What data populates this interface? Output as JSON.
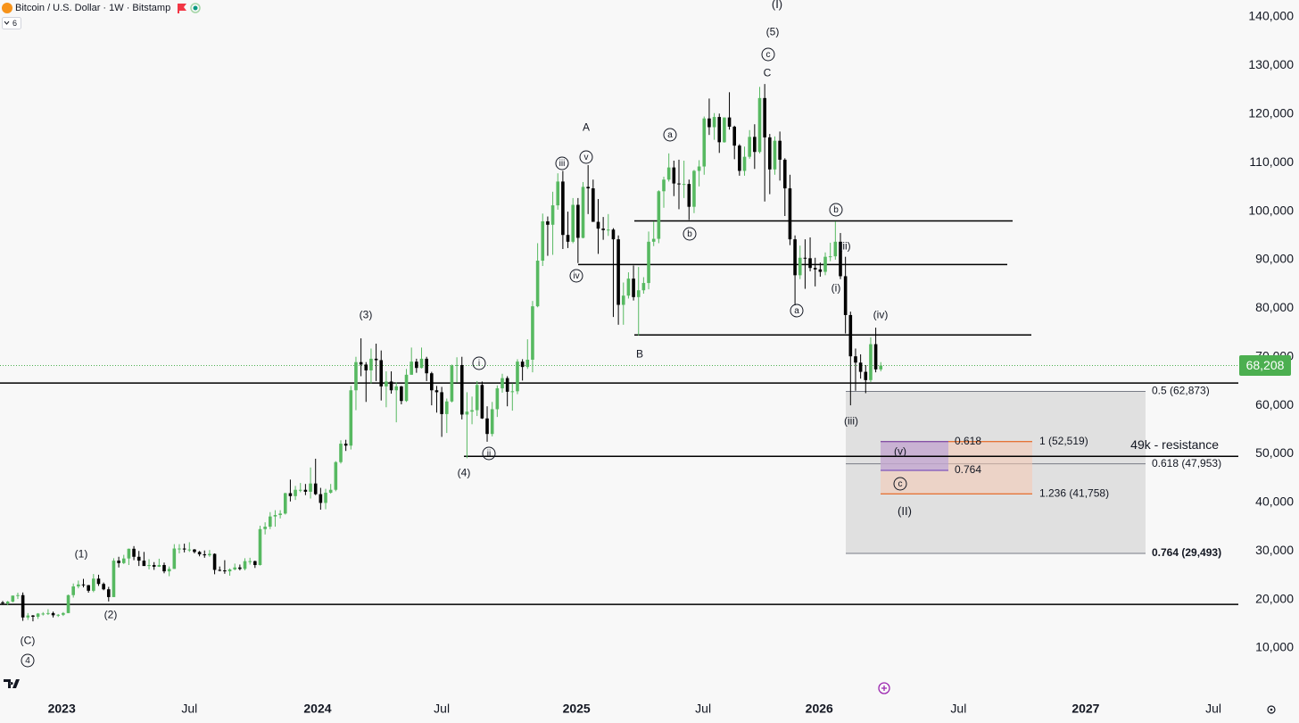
{
  "chart_data": {
    "type": "candlestick",
    "title": "Bitcoin / U.S. Dollar · 1W · Bitstamp",
    "indicator_count": 6,
    "up_color": "#57b961",
    "down_color": "#000000",
    "grid": false,
    "xlim": [
      -0.53,
      245.2
    ],
    "xticks": [
      {
        "value": 11.7,
        "label": "2023"
      },
      {
        "value": 37,
        "label": "Jul"
      },
      {
        "value": 62.4,
        "label": "2024"
      },
      {
        "value": 87,
        "label": "Jul"
      },
      {
        "value": 113.7,
        "label": "2025"
      },
      {
        "value": 138.8,
        "label": "Jul"
      },
      {
        "value": 161.8,
        "label": "2026"
      },
      {
        "value": 189.4,
        "label": "Jul"
      },
      {
        "value": 214.6,
        "label": "2027"
      },
      {
        "value": 239.9,
        "label": "Jul"
      }
    ],
    "ylim": [
      0,
      143500
    ],
    "yticks": [
      {
        "value": 10000,
        "label": "10,000"
      },
      {
        "value": 20000,
        "label": "20,000"
      },
      {
        "value": 30000,
        "label": "30,000"
      },
      {
        "value": 40000,
        "label": "40,000"
      },
      {
        "value": 50000,
        "label": "50,000"
      },
      {
        "value": 60000,
        "label": "60,000"
      },
      {
        "value": 70000,
        "label": "70,000"
      },
      {
        "value": 80000,
        "label": "80,000"
      },
      {
        "value": 90000,
        "label": "90,000"
      },
      {
        "value": 100000,
        "label": "100,000"
      },
      {
        "value": 110000,
        "label": "110,000"
      },
      {
        "value": 120000,
        "label": "120,000"
      },
      {
        "value": 130000,
        "label": "130,000"
      },
      {
        "value": 140000,
        "label": "140,000"
      }
    ],
    "candles": [
      [
        19400,
        19700,
        18900,
        19200
      ],
      [
        19200,
        19700,
        18800,
        19570
      ],
      [
        19570,
        20800,
        19400,
        20800
      ],
      [
        20800,
        21400,
        20100,
        20900
      ],
      [
        20900,
        21450,
        15600,
        16300
      ],
      [
        16300,
        17200,
        15800,
        16700
      ],
      [
        16700,
        16800,
        15500,
        16450
      ],
      [
        16450,
        17200,
        16000,
        17100
      ],
      [
        17100,
        17400,
        16700,
        17100
      ],
      [
        17100,
        18000,
        16800,
        17200
      ],
      [
        17200,
        17500,
        16300,
        16750
      ],
      [
        16750,
        17000,
        16400,
        16850
      ],
      [
        16850,
        17400,
        16600,
        17200
      ],
      [
        17200,
        21000,
        17200,
        20900
      ],
      [
        20900,
        23300,
        20400,
        22700
      ],
      [
        22700,
        23900,
        22300,
        23100
      ],
      [
        23100,
        24250,
        22500,
        22950
      ],
      [
        22950,
        23000,
        21400,
        21800
      ],
      [
        21800,
        25250,
        21500,
        24300
      ],
      [
        24300,
        25100,
        22800,
        23200
      ],
      [
        23200,
        23500,
        21900,
        22100
      ],
      [
        22100,
        22600,
        19600,
        20500
      ],
      [
        20500,
        28500,
        20500,
        28000
      ],
      [
        28000,
        28800,
        26600,
        27500
      ],
      [
        27500,
        29200,
        27300,
        28450
      ],
      [
        28450,
        30500,
        27100,
        30450
      ],
      [
        30450,
        31000,
        28100,
        28800
      ],
      [
        28800,
        30000,
        26900,
        28000
      ],
      [
        28000,
        29800,
        27000,
        26900
      ],
      [
        26900,
        28300,
        26200,
        27100
      ],
      [
        27100,
        27700,
        26100,
        26750
      ],
      [
        26750,
        28400,
        26700,
        27100
      ],
      [
        27100,
        27600,
        25400,
        25800
      ],
      [
        25800,
        26800,
        24800,
        26300
      ],
      [
        26300,
        31400,
        26300,
        30500
      ],
      [
        30500,
        31400,
        29500,
        30500
      ],
      [
        30500,
        31500,
        29700,
        30300
      ],
      [
        30300,
        31800,
        29800,
        30300
      ],
      [
        30300,
        30400,
        29500,
        29800
      ],
      [
        29800,
        30000,
        28900,
        29300
      ],
      [
        29300,
        30100,
        28600,
        29100
      ],
      [
        29100,
        30200,
        28800,
        29400
      ],
      [
        29400,
        29500,
        25200,
        26100
      ],
      [
        26100,
        26800,
        25800,
        26000
      ],
      [
        26000,
        28100,
        25300,
        25800
      ],
      [
        25800,
        26400,
        24900,
        26200
      ],
      [
        26200,
        27400,
        26000,
        26600
      ],
      [
        26600,
        27200,
        26000,
        26300
      ],
      [
        26300,
        28500,
        26000,
        27900
      ],
      [
        27900,
        28600,
        27200,
        27900
      ],
      [
        27900,
        28000,
        26500,
        27100
      ],
      [
        27100,
        35200,
        27000,
        34500
      ],
      [
        34500,
        35900,
        33400,
        35000
      ],
      [
        35000,
        38000,
        34500,
        37100
      ],
      [
        37100,
        38400,
        35000,
        37400
      ],
      [
        37400,
        38400,
        36700,
        37700
      ],
      [
        37700,
        42000,
        37500,
        41900
      ],
      [
        41900,
        44700,
        40200,
        41300
      ],
      [
        41300,
        43400,
        40500,
        42600
      ],
      [
        42600,
        44000,
        42100,
        42600
      ],
      [
        42600,
        43800,
        41500,
        42200
      ],
      [
        42200,
        47200,
        40800,
        43900
      ],
      [
        43900,
        49000,
        41500,
        41700
      ],
      [
        41700,
        43000,
        38500,
        39900
      ],
      [
        39900,
        42800,
        38600,
        42000
      ],
      [
        42000,
        43800,
        41800,
        42600
      ],
      [
        42600,
        48500,
        42300,
        48300
      ],
      [
        48300,
        52800,
        48000,
        52100
      ],
      [
        52100,
        52900,
        50600,
        51700
      ],
      [
        51700,
        64000,
        50900,
        63100
      ],
      [
        63100,
        70000,
        59000,
        68900
      ],
      [
        68900,
        73800,
        66000,
        68400
      ],
      [
        68400,
        68900,
        60700,
        67200
      ],
      [
        67200,
        71700,
        64500,
        69600
      ],
      [
        69600,
        72700,
        65000,
        69300
      ],
      [
        69300,
        71300,
        61000,
        63900
      ],
      [
        63900,
        67000,
        59600,
        64900
      ],
      [
        64900,
        67000,
        62400,
        63100
      ],
      [
        63100,
        64700,
        56500,
        63900
      ],
      [
        63900,
        64000,
        60200,
        60900
      ],
      [
        60900,
        67500,
        60700,
        66300
      ],
      [
        66300,
        71900,
        66300,
        69000
      ],
      [
        69000,
        69600,
        66700,
        67700
      ],
      [
        67700,
        71900,
        67600,
        69600
      ],
      [
        69600,
        70000,
        65000,
        66600
      ],
      [
        66600,
        66900,
        60000,
        63100
      ],
      [
        63100,
        64000,
        58500,
        62700
      ],
      [
        62700,
        63800,
        53500,
        58200
      ],
      [
        58200,
        61400,
        54300,
        60800
      ],
      [
        60800,
        68400,
        60600,
        68200
      ],
      [
        68200,
        69900,
        64700,
        68300
      ],
      [
        68300,
        70000,
        57100,
        58100
      ],
      [
        58100,
        62700,
        49100,
        58700
      ],
      [
        58700,
        61800,
        56100,
        59000
      ],
      [
        59000,
        65000,
        57800,
        64200
      ],
      [
        64200,
        64900,
        57200,
        57300
      ],
      [
        57300,
        59800,
        52500,
        54100
      ],
      [
        54100,
        60700,
        53600,
        59200
      ],
      [
        59200,
        64100,
        57600,
        63500
      ],
      [
        63500,
        66500,
        62600,
        65600
      ],
      [
        65600,
        66000,
        59800,
        62800
      ],
      [
        62800,
        64500,
        58900,
        62900
      ],
      [
        62900,
        69500,
        62300,
        69000
      ],
      [
        69000,
        69500,
        65100,
        67900
      ],
      [
        67900,
        73600,
        67500,
        69400
      ],
      [
        69400,
        81500,
        66800,
        80400
      ],
      [
        80400,
        93400,
        80200,
        89800
      ],
      [
        89800,
        99500,
        88700,
        97900
      ],
      [
        97900,
        98900,
        90800,
        97200
      ],
      [
        97200,
        104000,
        91000,
        101200
      ],
      [
        101200,
        107800,
        100300,
        106100
      ],
      [
        106100,
        108300,
        92200,
        95100
      ],
      [
        95100,
        99900,
        92400,
        93700
      ],
      [
        93700,
        102700,
        93400,
        101300
      ],
      [
        101300,
        102700,
        89300,
        94500
      ],
      [
        94500,
        106000,
        94400,
        105000
      ],
      [
        105000,
        109500,
        99400,
        104700
      ],
      [
        104700,
        106500,
        97800,
        97800
      ],
      [
        97800,
        102500,
        91200,
        96400
      ],
      [
        96400,
        98800,
        94100,
        96100
      ],
      [
        96100,
        99400,
        94900,
        96200
      ],
      [
        96200,
        96500,
        78200,
        94200
      ],
      [
        94200,
        95000,
        76600,
        80700
      ],
      [
        80700,
        85300,
        76600,
        82600
      ],
      [
        82600,
        87400,
        82000,
        86100
      ],
      [
        86100,
        88800,
        81600,
        82300
      ],
      [
        82300,
        88500,
        74400,
        83700
      ],
      [
        83700,
        86400,
        83000,
        85200
      ],
      [
        85200,
        95800,
        83900,
        93700
      ],
      [
        93700,
        97900,
        92800,
        94300
      ],
      [
        94300,
        104300,
        93400,
        104100
      ],
      [
        104100,
        107100,
        100700,
        106500
      ],
      [
        106500,
        111900,
        106100,
        109000
      ],
      [
        109000,
        110400,
        103100,
        105700
      ],
      [
        105700,
        110600,
        100400,
        105600
      ],
      [
        105600,
        110400,
        102700,
        105600
      ],
      [
        105600,
        106500,
        98200,
        100900
      ],
      [
        100900,
        108500,
        99600,
        108300
      ],
      [
        108300,
        110500,
        105100,
        109200
      ],
      [
        109200,
        119500,
        107500,
        119100
      ],
      [
        119100,
        123200,
        115700,
        117300
      ],
      [
        117300,
        120200,
        114700,
        119400
      ],
      [
        119400,
        120100,
        112000,
        114200
      ],
      [
        114200,
        119300,
        114100,
        119300
      ],
      [
        119300,
        124500,
        116800,
        117400
      ],
      [
        117400,
        117600,
        110700,
        113500
      ],
      [
        113500,
        113800,
        107300,
        108300
      ],
      [
        108300,
        113300,
        107300,
        111200
      ],
      [
        111200,
        116700,
        110800,
        115300
      ],
      [
        115300,
        117900,
        108700,
        112200
      ],
      [
        112200,
        125600,
        111900,
        123300
      ],
      [
        123300,
        126200,
        102000,
        115200
      ],
      [
        115200,
        115900,
        103500,
        108600
      ],
      [
        108600,
        115400,
        107500,
        114500
      ],
      [
        114500,
        116400,
        106300,
        110600
      ],
      [
        110600,
        110900,
        99000,
        104700
      ],
      [
        104700,
        107500,
        93000,
        94200
      ],
      [
        94200,
        95000,
        80600,
        86800
      ],
      [
        86800,
        92900,
        86000,
        90400
      ],
      [
        90400,
        94200,
        84000,
        90300
      ],
      [
        90300,
        94600,
        87600,
        88300
      ],
      [
        88300,
        90400,
        84500,
        88000
      ],
      [
        88000,
        89400,
        86500,
        87500
      ],
      [
        87500,
        91500,
        86800,
        90600
      ],
      [
        90600,
        93500,
        89700,
        90700
      ],
      [
        90700,
        97900,
        90000,
        93700
      ],
      [
        93700,
        95500,
        86000,
        86600
      ],
      [
        86600,
        90600,
        74800,
        78600
      ],
      [
        78600,
        79300,
        60000,
        70100
      ],
      [
        70100,
        71700,
        63000,
        68800
      ],
      [
        68800,
        70500,
        65500,
        66900
      ],
      [
        66900,
        68300,
        62500,
        65200
      ],
      [
        65200,
        74000,
        64800,
        72600
      ],
      [
        72600,
        76000,
        66800,
        67400
      ],
      [
        67400,
        68900,
        67000,
        68208
      ]
    ],
    "last_price": {
      "value": 68208,
      "label": "68,208"
    },
    "levels": [
      98000,
      89000,
      74500,
      64600,
      49500,
      19000
    ],
    "fib_retracement": [
      {
        "price": 62873,
        "label": "0.5 (62,873)"
      },
      {
        "price": 47953,
        "label": "0.618 (47,953)"
      },
      {
        "price": 29493,
        "label": "0.764 (29,493)"
      }
    ],
    "fib_extension": [
      {
        "price": 52519,
        "label": "1 (52,519)"
      },
      {
        "price": 41758,
        "label": "1.236 (41,758)"
      }
    ],
    "fib_zone": [
      {
        "price": 52519,
        "ratio": 0.618
      },
      {
        "price": 46600,
        "ratio": 0.764
      }
    ],
    "resistance_label": "49k - resistance",
    "wave_labels": [
      "(I)",
      "(5)",
      "c",
      "C",
      "A",
      "a",
      "iii",
      "v",
      "b",
      "iv",
      "b",
      "(ii)",
      "(i)",
      "a",
      "(iv)",
      "(iii)",
      "(v)",
      "c",
      "(II)",
      "B",
      "i",
      "ii",
      "(4)",
      "(3)",
      "(1)",
      "(2)",
      "(C)",
      "4"
    ]
  }
}
